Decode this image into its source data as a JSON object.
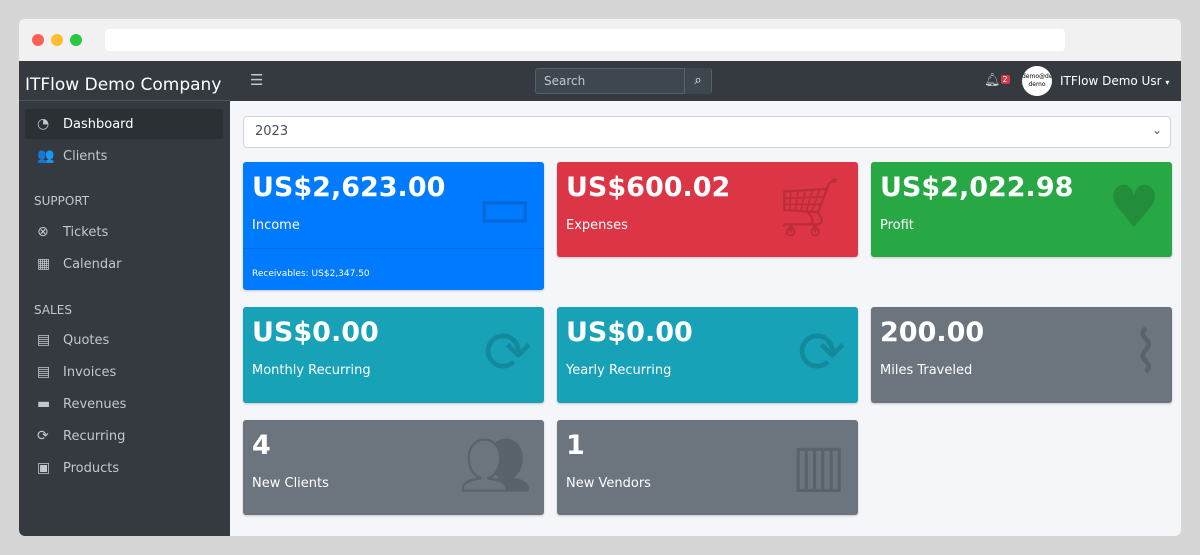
{
  "company": "ITFlow Demo Company",
  "sidebar": {
    "items": [
      {
        "label": "Dashboard",
        "icon": "tachometer-icon",
        "glyph": "◔"
      },
      {
        "label": "Clients",
        "icon": "users-icon",
        "glyph": "👥"
      }
    ],
    "support_header": "SUPPORT",
    "support": [
      {
        "label": "Tickets",
        "icon": "life-ring-icon",
        "glyph": "⊗"
      },
      {
        "label": "Calendar",
        "icon": "calendar-icon",
        "glyph": "▦"
      }
    ],
    "sales_header": "SALES",
    "sales": [
      {
        "label": "Quotes",
        "icon": "file-icon",
        "glyph": "▤"
      },
      {
        "label": "Invoices",
        "icon": "invoice-icon",
        "glyph": "▤"
      },
      {
        "label": "Revenues",
        "icon": "credit-card-icon",
        "glyph": "▬"
      },
      {
        "label": "Recurring",
        "icon": "sync-icon",
        "glyph": "⟳"
      },
      {
        "label": "Products",
        "icon": "box-icon",
        "glyph": "▣"
      }
    ]
  },
  "topbar": {
    "search_placeholder": "Search",
    "notifications": "2",
    "avatar_text": "demo@demo demo",
    "user": "ITFlow Demo Usr"
  },
  "year": "2023",
  "cards": [
    {
      "value": "US$2,623.00",
      "label": "Income",
      "footer": "Receivables: US$2,347.50",
      "color": "#007bff",
      "icon": "credit-card-icon"
    },
    {
      "value": "US$600.02",
      "label": "Expenses",
      "color": "#dc3545",
      "icon": "shopping-cart-icon"
    },
    {
      "value": "US$2,022.98",
      "label": "Profit",
      "color": "#28a745",
      "icon": "heart-icon"
    },
    {
      "value": "US$0.00",
      "label": "Monthly Recurring",
      "color": "#17a2b8",
      "icon": "sync-icon"
    },
    {
      "value": "US$0.00",
      "label": "Yearly Recurring",
      "color": "#17a2b8",
      "icon": "sync-icon"
    },
    {
      "value": "200.00",
      "label": "Miles Traveled",
      "color": "#6c757d",
      "icon": "route-icon"
    },
    {
      "value": "4",
      "label": "New Clients",
      "color": "#6c757d",
      "icon": "users-icon"
    },
    {
      "value": "1",
      "label": "New Vendors",
      "color": "#6c757d",
      "icon": "building-icon"
    }
  ]
}
